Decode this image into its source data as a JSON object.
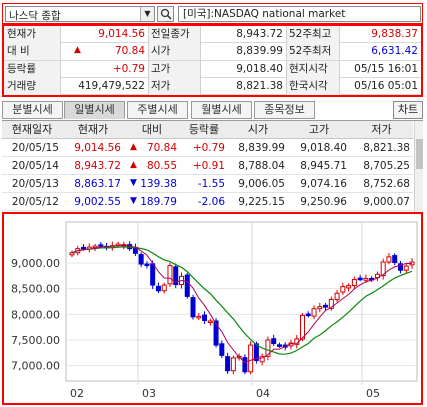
{
  "search": {
    "symbol": "나스닥 종합",
    "market": "[미국]:NASDAQ national market"
  },
  "quote": {
    "rows": [
      {
        "l1": "현재가",
        "v1": "9,014.56",
        "l2": "전일종가",
        "v2": "8,943.72",
        "l3": "52주최고",
        "v3": "9,838.37"
      },
      {
        "l1": "대  비",
        "v1": "70.84",
        "l2": "시가",
        "v2": "8,839.99",
        "l3": "52주최저",
        "v3": "6,631.42"
      },
      {
        "l1": "등락률",
        "v1": "+0.79",
        "l2": "고가",
        "v2": "9,018.40",
        "l3": "현지시각",
        "v3": "05/15 16:01"
      },
      {
        "l1": "거래량",
        "v1": "419,479,522",
        "l2": "저가",
        "v2": "8,821.38",
        "l3": "한국시각",
        "v3": "05/16 05:01"
      }
    ]
  },
  "tabs": [
    "분별시세",
    "일별시세",
    "주별시세",
    "월별시세",
    "종목정보"
  ],
  "active_tab": "일별시세",
  "chart_button": "차트",
  "daily": {
    "headers": [
      "현재일자",
      "현재가",
      "대비",
      "등락률",
      "시가",
      "고가",
      "저가"
    ],
    "rows": [
      {
        "date": "20/05/15",
        "close": "9,014.56",
        "dir": "up",
        "chg": "70.84",
        "pct": "+0.79",
        "open": "8,839.99",
        "high": "9,018.40",
        "low": "8,821.38"
      },
      {
        "date": "20/05/14",
        "close": "8,943.72",
        "dir": "up",
        "chg": "80.55",
        "pct": "+0.91",
        "open": "8,788.04",
        "high": "8,945.71",
        "low": "8,705.25"
      },
      {
        "date": "20/05/13",
        "close": "8,863.17",
        "dir": "down",
        "chg": "139.38",
        "pct": "-1.55",
        "open": "9,006.05",
        "high": "9,074.16",
        "low": "8,752.68"
      },
      {
        "date": "20/05/12",
        "close": "9,002.55",
        "dir": "down",
        "chg": "189.79",
        "pct": "-2.06",
        "open": "9,225.15",
        "high": "9,250.96",
        "low": "9,000.07"
      }
    ]
  },
  "colors": {
    "up": "#d40000",
    "down": "#0000d4",
    "ma_short": "#b0005a",
    "ma_long": "#0a8a0a"
  },
  "chart_data": {
    "type": "candlestick",
    "yticks": [
      "9,000.00",
      "8,500.00",
      "8,000.00",
      "7,500.00",
      "7,000.00"
    ],
    "ytick_values": [
      9000,
      8500,
      8000,
      7500,
      7000
    ],
    "xticks": [
      "02",
      "03",
      "04",
      "05"
    ],
    "ylim": [
      6700,
      9800
    ],
    "series": [
      {
        "values": [
          9200,
          9280,
          9300,
          9310,
          9330,
          9350,
          9300,
          9340,
          9370,
          9360,
          9280,
          9190,
          8980,
          8960,
          8570,
          8460,
          8570,
          8950,
          8580,
          8740,
          8350,
          7950,
          7960,
          7880,
          7870,
          7400,
          7200,
          6900,
          7150,
          7180,
          6880,
          7400,
          7100,
          7180,
          7500,
          7430,
          7400,
          7360,
          7440,
          7520,
          7980,
          7990,
          8110,
          8150,
          8140,
          8290,
          8410,
          8540,
          8560,
          8680,
          8690,
          8700,
          8690,
          8780,
          9020,
          9120,
          9010,
          8860,
          8940,
          9020
        ]
      }
    ]
  }
}
